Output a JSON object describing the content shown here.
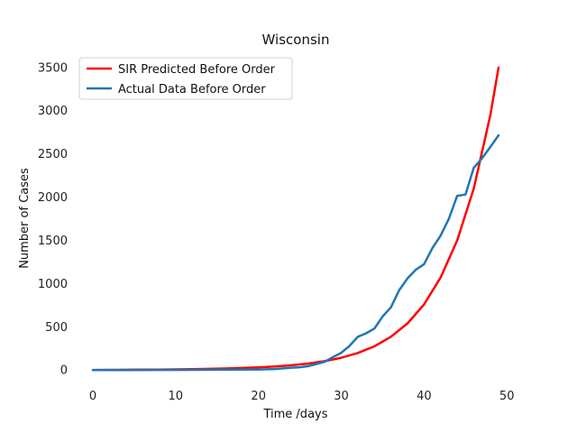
{
  "chart_data": {
    "type": "line",
    "title": "Wisconsin",
    "xlabel": "Time /days",
    "ylabel": "Number of Cases",
    "xlim": [
      -2.5,
      51.5
    ],
    "ylim": [
      -175,
      3675
    ],
    "xticks": [
      0,
      10,
      20,
      30,
      40,
      50
    ],
    "yticks": [
      0,
      500,
      1000,
      1500,
      2000,
      2500,
      3000,
      3500
    ],
    "grid": false,
    "legend_position": "top-left",
    "series": [
      {
        "name": "SIR Predicted Before Order",
        "color": "#ff0000",
        "x": [
          0,
          2,
          4,
          6,
          8,
          10,
          12,
          14,
          16,
          18,
          20,
          22,
          24,
          26,
          28,
          30,
          32,
          34,
          36,
          38,
          40,
          42,
          44,
          46,
          48,
          49
        ],
        "y": [
          1,
          2,
          3,
          4,
          6,
          8,
          10,
          14,
          18,
          24,
          31,
          41,
          56,
          75,
          103,
          142,
          197,
          275,
          385,
          540,
          760,
          1070,
          1500,
          2100,
          2950,
          3500
        ]
      },
      {
        "name": "Actual Data Before Order",
        "color": "#1f77b4",
        "x": [
          0,
          4,
          8,
          12,
          16,
          20,
          22,
          24,
          25,
          26,
          27,
          28,
          29,
          30,
          31,
          32,
          33,
          34,
          35,
          36,
          37,
          38,
          39,
          40,
          41,
          42,
          43,
          44,
          45,
          46,
          47,
          48,
          49
        ],
        "y": [
          0,
          0,
          1,
          2,
          4,
          7,
          12,
          27,
          33,
          45,
          70,
          95,
          150,
          200,
          280,
          385,
          425,
          480,
          620,
          725,
          925,
          1060,
          1160,
          1225,
          1410,
          1555,
          1750,
          2015,
          2030,
          2340,
          2450,
          2580,
          2715
        ]
      }
    ]
  }
}
